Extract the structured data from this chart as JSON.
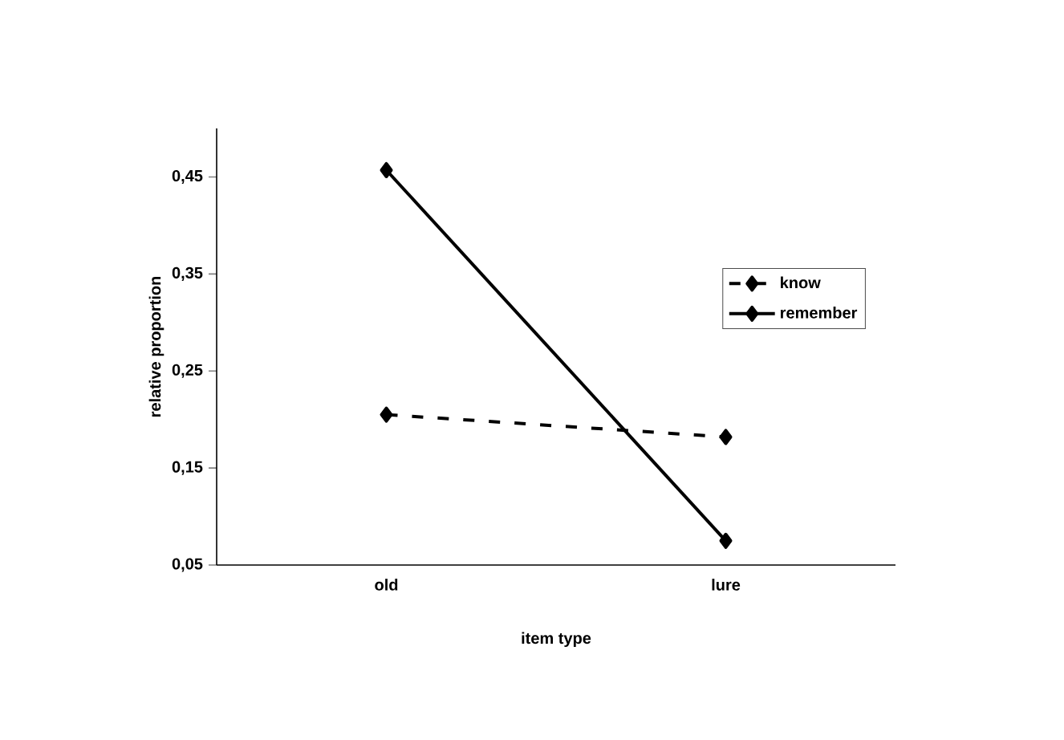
{
  "chart_data": {
    "type": "line",
    "xlabel": "item type",
    "ylabel": "relative proportion",
    "categories": [
      "old",
      "lure"
    ],
    "series": [
      {
        "name": "know",
        "color": "#000000",
        "line_style": "dashed",
        "values": [
          0.205,
          0.182
        ]
      },
      {
        "name": "remember",
        "color": "#000000",
        "line_style": "solid",
        "values": [
          0.457,
          0.075
        ]
      }
    ],
    "ylim": [
      0.05,
      0.5
    ],
    "yticks": [
      {
        "value": 0.05,
        "label": "0,05"
      },
      {
        "value": 0.15,
        "label": "0,15"
      },
      {
        "value": 0.25,
        "label": "0,25"
      },
      {
        "value": 0.35,
        "label": "0,35"
      },
      {
        "value": 0.45,
        "label": "0,45"
      }
    ],
    "marker": "diamond",
    "legend": "right",
    "grid": false
  }
}
